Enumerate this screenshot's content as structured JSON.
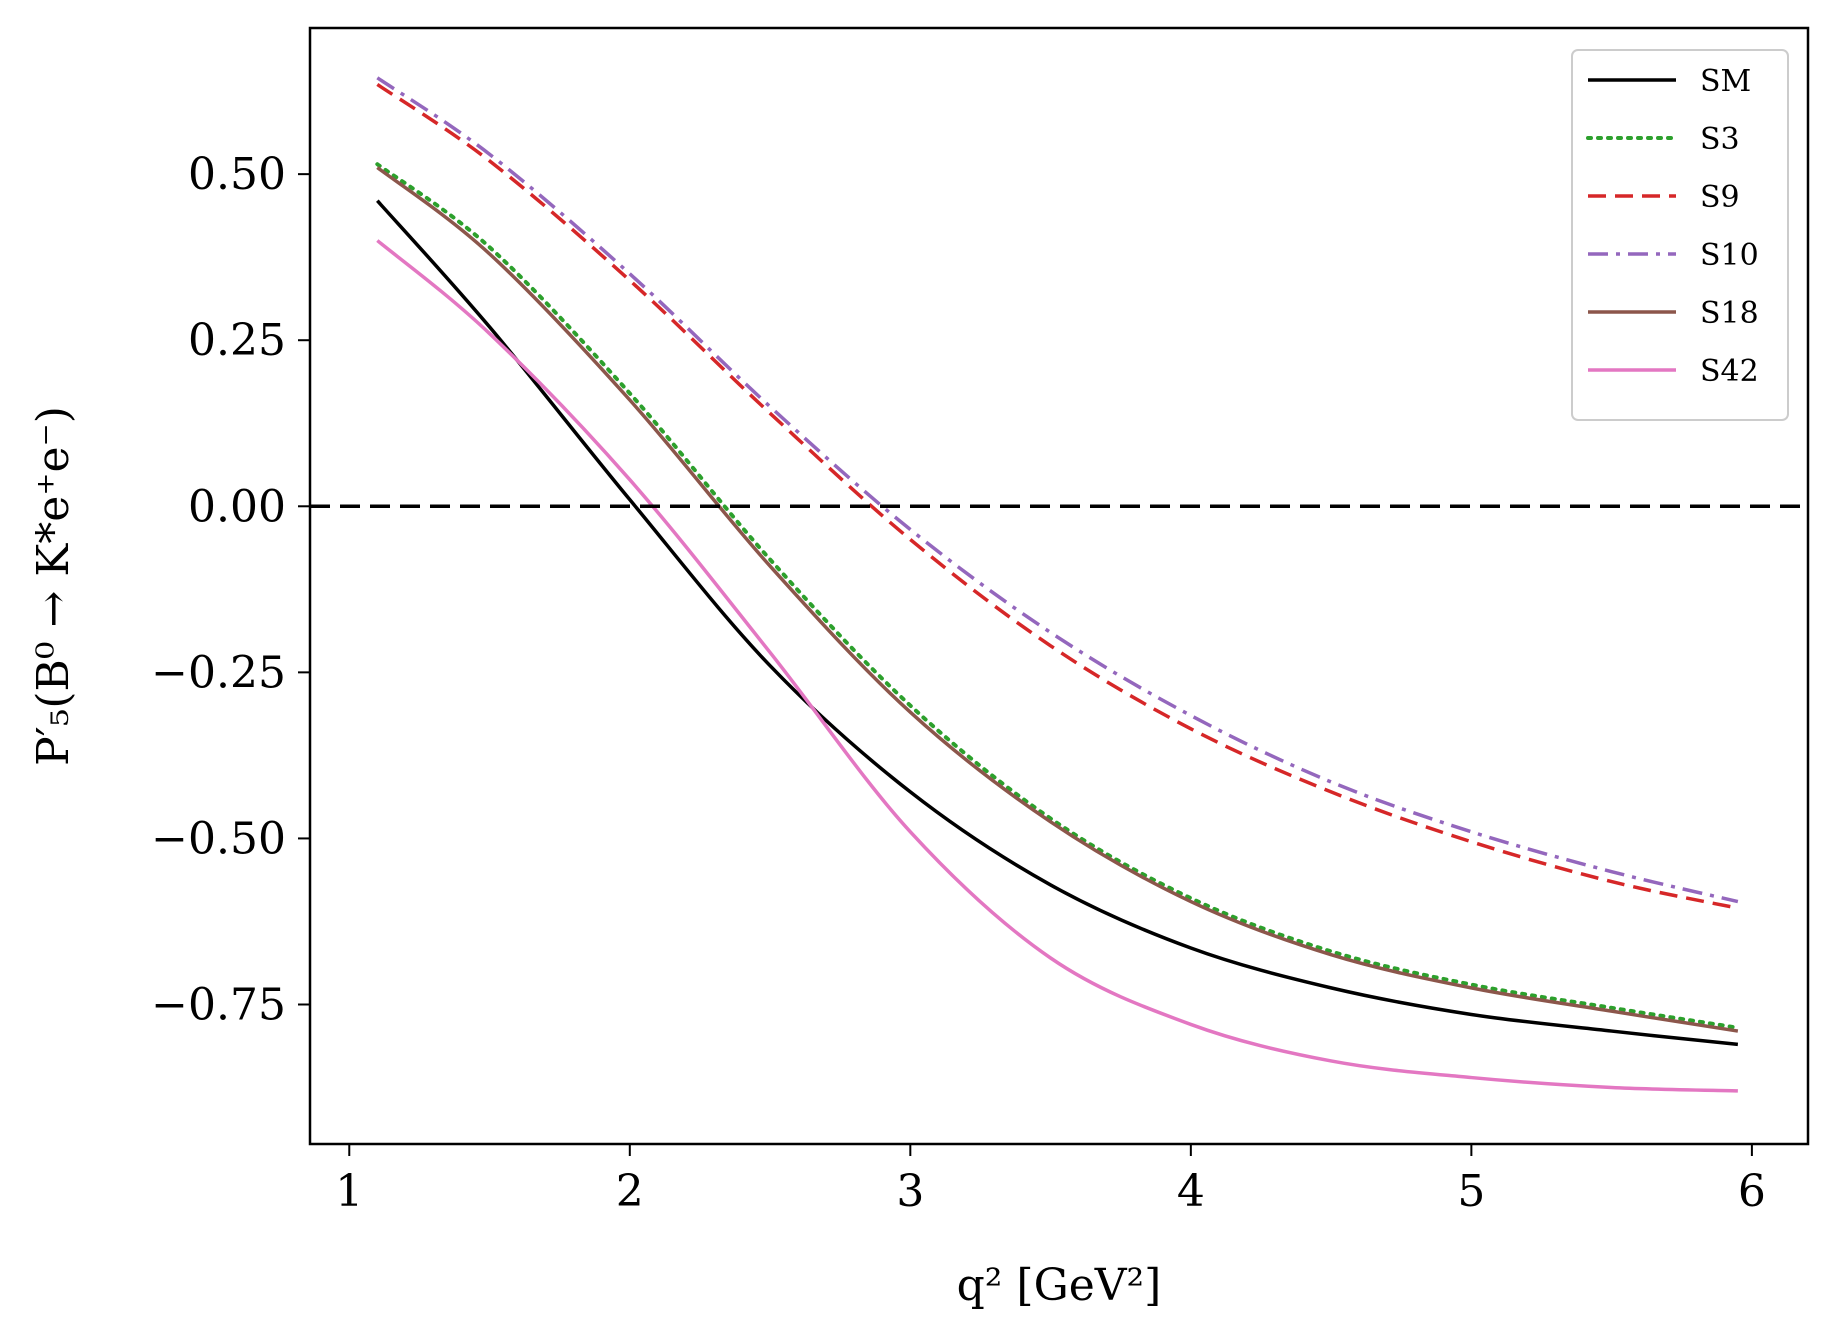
{
  "chart_data": {
    "type": "line",
    "xlabel": "q² [GeV²]",
    "ylabel": "P′₅(B⁰ → K*e⁺e⁻)",
    "xlim": [
      0.86,
      6.2
    ],
    "ylim": [
      -0.96,
      0.72
    ],
    "xticks": [
      1,
      2,
      3,
      4,
      5,
      6
    ],
    "xtick_labels": [
      "1",
      "2",
      "3",
      "4",
      "5",
      "6"
    ],
    "yticks": [
      0.5,
      0.25,
      0.0,
      -0.25,
      -0.5,
      -0.75
    ],
    "ytick_labels": [
      "0.50",
      "0.25",
      "0.00",
      "−0.25",
      "−0.50",
      "−0.75"
    ],
    "grid": false,
    "legend_position": "top-right",
    "reference_line": {
      "y": 0.0,
      "style": "dashed",
      "color": "#000000"
    },
    "x": [
      1.1,
      1.5,
      2.0,
      2.5,
      3.0,
      3.5,
      4.0,
      4.5,
      5.0,
      5.5,
      5.95
    ],
    "series": [
      {
        "name": "SM",
        "color": "#000000",
        "dash": "solid",
        "values": [
          0.46,
          0.27,
          0.01,
          -0.24,
          -0.43,
          -0.57,
          -0.665,
          -0.725,
          -0.765,
          -0.79,
          -0.81
        ]
      },
      {
        "name": "S3",
        "color": "#2ca02c",
        "dash": "dotted",
        "values": [
          0.515,
          0.39,
          0.17,
          -0.08,
          -0.3,
          -0.47,
          -0.59,
          -0.67,
          -0.72,
          -0.755,
          -0.785
        ]
      },
      {
        "name": "S9",
        "color": "#d62728",
        "dash": "dashed",
        "values": [
          0.635,
          0.52,
          0.34,
          0.14,
          -0.05,
          -0.21,
          -0.335,
          -0.43,
          -0.505,
          -0.565,
          -0.605
        ]
      },
      {
        "name": "S10",
        "color": "#9467bd",
        "dash": "dashdot",
        "values": [
          0.645,
          0.53,
          0.35,
          0.15,
          -0.035,
          -0.19,
          -0.315,
          -0.415,
          -0.49,
          -0.55,
          -0.595
        ]
      },
      {
        "name": "S18",
        "color": "#8c564b",
        "dash": "solid",
        "values": [
          0.51,
          0.38,
          0.16,
          -0.09,
          -0.31,
          -0.475,
          -0.595,
          -0.675,
          -0.725,
          -0.76,
          -0.79
        ]
      },
      {
        "name": "S42",
        "color": "#e377c2",
        "dash": "solid",
        "values": [
          0.4,
          0.26,
          0.04,
          -0.22,
          -0.49,
          -0.68,
          -0.78,
          -0.835,
          -0.86,
          -0.875,
          -0.88
        ]
      }
    ]
  }
}
